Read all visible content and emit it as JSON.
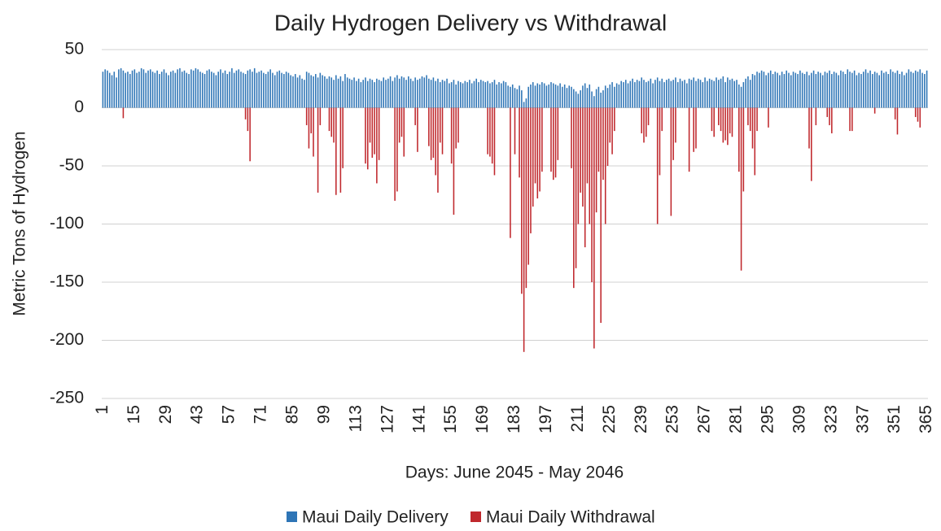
{
  "chart_data": {
    "type": "bar",
    "title": "Daily Hydrogen Delivery vs Withdrawal",
    "x_label": "Days: June 2045 - May 2046",
    "y_label": "Metric Tons of Hydrogen",
    "ylim": [
      -250,
      50
    ],
    "yticks": [
      50,
      0,
      -50,
      -100,
      -150,
      -200,
      -250
    ],
    "grid": true,
    "categories": [
      1,
      null,
      null,
      null,
      null,
      null,
      null,
      null,
      null,
      null,
      null,
      null,
      null,
      null,
      15,
      null,
      null,
      null,
      null,
      null,
      null,
      null,
      null,
      null,
      null,
      null,
      null,
      null,
      29,
      null,
      null,
      null,
      null,
      null,
      null,
      null,
      null,
      null,
      null,
      null,
      null,
      null,
      43,
      null,
      null,
      null,
      null,
      null,
      null,
      null,
      null,
      null,
      null,
      null,
      null,
      null,
      57,
      null,
      null,
      null,
      null,
      null,
      null,
      null,
      null,
      null,
      null,
      null,
      null,
      null,
      71,
      null,
      null,
      null,
      null,
      null,
      null,
      null,
      null,
      null,
      null,
      null,
      null,
      null,
      85,
      null,
      null,
      null,
      null,
      null,
      null,
      null,
      null,
      null,
      null,
      null,
      null,
      null,
      99,
      null,
      null,
      null,
      null,
      null,
      null,
      null,
      null,
      null,
      null,
      null,
      null,
      null,
      113,
      null,
      null,
      null,
      null,
      null,
      null,
      null,
      null,
      null,
      null,
      null,
      null,
      null,
      127,
      null,
      null,
      null,
      null,
      null,
      null,
      null,
      null,
      null,
      null,
      null,
      null,
      null,
      141,
      null,
      null,
      null,
      null,
      null,
      null,
      null,
      null,
      null,
      null,
      null,
      null,
      null,
      155,
      null,
      null,
      null,
      null,
      null,
      null,
      null,
      null,
      null,
      null,
      null,
      null,
      null,
      169,
      null,
      null,
      null,
      null,
      null,
      null,
      null,
      null,
      null,
      null,
      null,
      null,
      null,
      183,
      null,
      null,
      null,
      null,
      null,
      null,
      null,
      null,
      null,
      null,
      null,
      null,
      null,
      197,
      null,
      null,
      null,
      null,
      null,
      null,
      null,
      null,
      null,
      null,
      null,
      null,
      null,
      211,
      null,
      null,
      null,
      null,
      null,
      null,
      null,
      null,
      null,
      null,
      null,
      null,
      null,
      225,
      null,
      null,
      null,
      null,
      null,
      null,
      null,
      null,
      null,
      null,
      null,
      null,
      null,
      239,
      null,
      null,
      null,
      null,
      null,
      null,
      null,
      null,
      null,
      null,
      null,
      null,
      null,
      253,
      null,
      null,
      null,
      null,
      null,
      null,
      null,
      null,
      null,
      null,
      null,
      null,
      null,
      267,
      null,
      null,
      null,
      null,
      null,
      null,
      null,
      null,
      null,
      null,
      null,
      null,
      null,
      281,
      null,
      null,
      null,
      null,
      null,
      null,
      null,
      null,
      null,
      null,
      null,
      null,
      null,
      295,
      null,
      null,
      null,
      null,
      null,
      null,
      null,
      null,
      null,
      null,
      null,
      null,
      null,
      309,
      null,
      null,
      null,
      null,
      null,
      null,
      null,
      null,
      null,
      null,
      null,
      null,
      null,
      323,
      null,
      null,
      null,
      null,
      null,
      null,
      null,
      null,
      null,
      null,
      null,
      null,
      null,
      337,
      null,
      null,
      null,
      null,
      null,
      null,
      null,
      null,
      null,
      null,
      null,
      null,
      null,
      351,
      null,
      null,
      null,
      null,
      null,
      null,
      null,
      null,
      null,
      null,
      null,
      null,
      null,
      365
    ],
    "series": [
      {
        "name": "Maui Daily Delivery",
        "color": "#2e75b6",
        "values": [
          31,
          33,
          32,
          30,
          28,
          31,
          26,
          33,
          34,
          32,
          30,
          31,
          29,
          32,
          33,
          30,
          31,
          34,
          33,
          30,
          32,
          33,
          31,
          30,
          32,
          29,
          31,
          33,
          30,
          28,
          31,
          32,
          30,
          33,
          34,
          31,
          32,
          30,
          29,
          33,
          32,
          34,
          33,
          31,
          30,
          29,
          32,
          33,
          31,
          30,
          28,
          31,
          33,
          30,
          32,
          29,
          31,
          34,
          30,
          32,
          33,
          31,
          30,
          29,
          32,
          33,
          31,
          34,
          30,
          31,
          32,
          30,
          29,
          31,
          33,
          30,
          28,
          31,
          32,
          30,
          29,
          31,
          30,
          28,
          27,
          29,
          26,
          28,
          25,
          24,
          31,
          30,
          28,
          27,
          29,
          26,
          30,
          28,
          27,
          25,
          27,
          26,
          24,
          28,
          25,
          27,
          23,
          29,
          26,
          25,
          24,
          26,
          23,
          25,
          22,
          24,
          26,
          23,
          25,
          24,
          22,
          25,
          24,
          23,
          26,
          24,
          25,
          27,
          23,
          26,
          28,
          25,
          27,
          26,
          24,
          27,
          25,
          23,
          26,
          24,
          25,
          27,
          26,
          28,
          25,
          24,
          26,
          23,
          25,
          22,
          24,
          23,
          25,
          21,
          22,
          24,
          20,
          23,
          22,
          21,
          23,
          22,
          24,
          21,
          23,
          25,
          22,
          24,
          23,
          22,
          23,
          21,
          22,
          24,
          20,
          22,
          21,
          23,
          22,
          19,
          18,
          20,
          17,
          16,
          19,
          15,
          5,
          8,
          18,
          20,
          22,
          19,
          21,
          20,
          22,
          21,
          19,
          20,
          22,
          21,
          20,
          19,
          21,
          18,
          20,
          17,
          19,
          18,
          16,
          14,
          12,
          15,
          19,
          21,
          17,
          20,
          14,
          10,
          16,
          18,
          13,
          15,
          19,
          17,
          20,
          22,
          18,
          21,
          20,
          23,
          22,
          24,
          21,
          23,
          25,
          22,
          24,
          23,
          26,
          24,
          22,
          23,
          25,
          21,
          24,
          26,
          23,
          25,
          22,
          24,
          25,
          23,
          24,
          26,
          22,
          25,
          23,
          24,
          21,
          25,
          24,
          26,
          23,
          25,
          24,
          22,
          26,
          23,
          25,
          24,
          23,
          26,
          24,
          25,
          27,
          22,
          26,
          24,
          25,
          23,
          24,
          20,
          18,
          22,
          25,
          27,
          24,
          29,
          28,
          31,
          30,
          32,
          31,
          28,
          30,
          32,
          29,
          31,
          30,
          28,
          31,
          29,
          32,
          30,
          28,
          31,
          30,
          29,
          32,
          30,
          29,
          31,
          28,
          30,
          32,
          29,
          31,
          30,
          28,
          31,
          30,
          32,
          29,
          31,
          30,
          28,
          32,
          31,
          29,
          33,
          31,
          30,
          32,
          28,
          30,
          29,
          31,
          33,
          30,
          32,
          29,
          31,
          30,
          28,
          32,
          30,
          31,
          29,
          33,
          31,
          30,
          32,
          29,
          31,
          28,
          30,
          33,
          31,
          30,
          32,
          31,
          33,
          30,
          29,
          32
        ]
      },
      {
        "name": "Maui Daily Withdrawal",
        "color": "#c0282d",
        "values": [
          0,
          0,
          0,
          0,
          0,
          0,
          0,
          0,
          0,
          -9,
          0,
          0,
          0,
          0,
          0,
          0,
          0,
          0,
          0,
          0,
          0,
          0,
          0,
          0,
          0,
          0,
          0,
          0,
          0,
          0,
          0,
          0,
          0,
          0,
          0,
          0,
          0,
          0,
          0,
          0,
          0,
          0,
          0,
          0,
          0,
          0,
          0,
          0,
          0,
          0,
          0,
          0,
          0,
          0,
          0,
          0,
          0,
          0,
          0,
          0,
          0,
          0,
          0,
          -10,
          -20,
          -46,
          0,
          0,
          0,
          0,
          0,
          0,
          0,
          0,
          0,
          0,
          0,
          0,
          0,
          0,
          0,
          0,
          0,
          0,
          0,
          0,
          0,
          0,
          0,
          0,
          -15,
          -35,
          -22,
          -42,
          0,
          -73,
          -15,
          0,
          0,
          0,
          -20,
          -25,
          -30,
          -75,
          0,
          -73,
          -52,
          0,
          0,
          0,
          0,
          0,
          0,
          0,
          0,
          0,
          -48,
          -53,
          -30,
          -43,
          -40,
          -65,
          -45,
          0,
          0,
          0,
          0,
          0,
          0,
          -80,
          -72,
          -30,
          -25,
          -42,
          0,
          0,
          0,
          0,
          -15,
          -38,
          0,
          0,
          0,
          0,
          -33,
          -45,
          -43,
          -58,
          -73,
          -30,
          -40,
          0,
          0,
          0,
          -48,
          -92,
          -35,
          -30,
          0,
          0,
          0,
          0,
          0,
          0,
          0,
          0,
          0,
          0,
          0,
          0,
          -40,
          -42,
          -48,
          -58,
          0,
          0,
          0,
          0,
          0,
          0,
          -112,
          0,
          -40,
          0,
          -60,
          -160,
          -210,
          -155,
          -135,
          -108,
          -85,
          -65,
          -78,
          -72,
          -55,
          0,
          0,
          0,
          -55,
          -62,
          -60,
          -45,
          0,
          0,
          0,
          0,
          0,
          -52,
          -155,
          -138,
          -100,
          -73,
          -85,
          -120,
          -65,
          -100,
          -150,
          -207,
          -90,
          -55,
          -185,
          -62,
          -100,
          -50,
          -30,
          -40,
          -20,
          0,
          0,
          0,
          0,
          0,
          0,
          0,
          0,
          0,
          0,
          0,
          -22,
          -30,
          -25,
          -15,
          0,
          0,
          0,
          -100,
          -58,
          -20,
          0,
          0,
          0,
          -93,
          -45,
          -30,
          0,
          0,
          0,
          0,
          0,
          -55,
          0,
          -38,
          -35,
          0,
          0,
          0,
          0,
          0,
          0,
          -20,
          -25,
          0,
          -15,
          -20,
          -30,
          -28,
          -32,
          -22,
          -25,
          0,
          0,
          -55,
          -140,
          -72,
          0,
          -15,
          -20,
          -35,
          -58,
          -20,
          0,
          0,
          0,
          0,
          -17,
          0,
          0,
          0,
          0,
          0,
          0,
          0,
          0,
          0,
          0,
          0,
          0,
          0,
          0,
          0,
          0,
          0,
          -35,
          -63,
          0,
          -15,
          0,
          0,
          0,
          0,
          -8,
          -15,
          -22,
          0,
          0,
          0,
          0,
          0,
          0,
          0,
          -20,
          -20,
          0,
          0,
          0,
          0,
          0,
          0,
          0,
          0,
          0,
          -5,
          0,
          0,
          0,
          0,
          0,
          0,
          0,
          0,
          -10,
          -23,
          0,
          0,
          0,
          0,
          0,
          0,
          0,
          -8,
          -12,
          -17,
          0,
          0,
          0
        ]
      }
    ]
  }
}
